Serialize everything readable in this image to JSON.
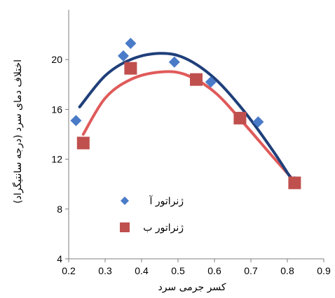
{
  "chart_data": {
    "type": "scatter",
    "xlabel": "کسر جرمی سرد",
    "ylabel": "اختلاف دمای سرد (درجه سانتیگراد)",
    "xlim": [
      0.2,
      0.9
    ],
    "ylim": [
      4,
      24
    ],
    "x_ticks": [
      "0.2",
      "0.3",
      "0.4",
      "0.5",
      "0.6",
      "0.7",
      "0.8",
      "0.9"
    ],
    "y_ticks": [
      "4",
      "8",
      "12",
      "16",
      "20"
    ],
    "grid": false,
    "legend_position": "bottom-left",
    "series": [
      {
        "name": "ژنراتور آ",
        "marker": "diamond",
        "color": "#4a7bc8",
        "trend_color": "#1f3f7a",
        "points": [
          [
            0.22,
            15.1
          ],
          [
            0.35,
            20.3
          ],
          [
            0.37,
            21.3
          ],
          [
            0.49,
            19.8
          ],
          [
            0.59,
            18.2
          ],
          [
            0.72,
            15.0
          ],
          [
            0.82,
            10.2
          ]
        ],
        "trend": [
          [
            0.23,
            16.2
          ],
          [
            0.3,
            18.7
          ],
          [
            0.37,
            20.0
          ],
          [
            0.45,
            20.5
          ],
          [
            0.52,
            20.1
          ],
          [
            0.6,
            18.5
          ],
          [
            0.68,
            15.9
          ],
          [
            0.76,
            12.7
          ],
          [
            0.82,
            10.0
          ]
        ]
      },
      {
        "name": "ژنراتور ب",
        "marker": "square",
        "color": "#c0504d",
        "trend_color": "#e05a5a",
        "points": [
          [
            0.24,
            13.3
          ],
          [
            0.37,
            19.3
          ],
          [
            0.55,
            18.4
          ],
          [
            0.67,
            15.3
          ],
          [
            0.82,
            10.1
          ]
        ],
        "trend": [
          [
            0.24,
            14.0
          ],
          [
            0.3,
            16.9
          ],
          [
            0.37,
            18.4
          ],
          [
            0.45,
            19.0
          ],
          [
            0.52,
            18.8
          ],
          [
            0.6,
            17.4
          ],
          [
            0.68,
            14.9
          ],
          [
            0.76,
            12.2
          ],
          [
            0.83,
            9.9
          ]
        ]
      }
    ]
  }
}
